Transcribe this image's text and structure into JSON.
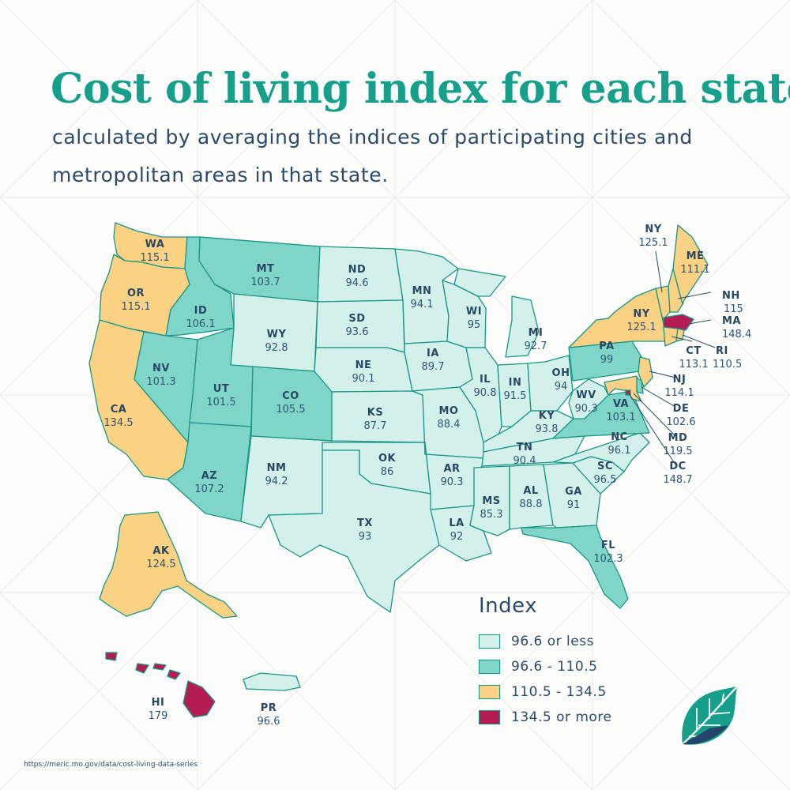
{
  "title": "Cost of living index for each state",
  "subtitle": "calculated by averaging the indices of participating cities and metropolitan areas in that state.",
  "colors": {
    "tier1": "#d3f0eb",
    "tier2": "#7fd5c8",
    "tier3": "#fbd184",
    "tier4": "#b51d52",
    "border": "#179686",
    "title": "#16a08c",
    "text": "#2b4a68"
  },
  "legend": {
    "title": "Index",
    "items": [
      {
        "label": "96.6 or less",
        "tier": "tier1"
      },
      {
        "label": "96.6 - 110.5",
        "tier": "tier2"
      },
      {
        "label": "110.5 - 134.5",
        "tier": "tier3"
      },
      {
        "label": "134.5 or more",
        "tier": "tier4"
      }
    ]
  },
  "states": {
    "WA": {
      "abbr": "WA",
      "value": "115.1",
      "tier": "tier3"
    },
    "OR": {
      "abbr": "OR",
      "value": "115.1",
      "tier": "tier3"
    },
    "CA": {
      "abbr": "CA",
      "value": "134.5",
      "tier": "tier3"
    },
    "ID": {
      "abbr": "ID",
      "value": "106.1",
      "tier": "tier2"
    },
    "NV": {
      "abbr": "NV",
      "value": "101.3",
      "tier": "tier2"
    },
    "MT": {
      "abbr": "MT",
      "value": "103.7",
      "tier": "tier2"
    },
    "WY": {
      "abbr": "WY",
      "value": "92.8",
      "tier": "tier1"
    },
    "UT": {
      "abbr": "UT",
      "value": "101.5",
      "tier": "tier2"
    },
    "AZ": {
      "abbr": "AZ",
      "value": "107.2",
      "tier": "tier2"
    },
    "CO": {
      "abbr": "CO",
      "value": "105.5",
      "tier": "tier2"
    },
    "NM": {
      "abbr": "NM",
      "value": "94.2",
      "tier": "tier1"
    },
    "ND": {
      "abbr": "ND",
      "value": "94.6",
      "tier": "tier1"
    },
    "SD": {
      "abbr": "SD",
      "value": "93.6",
      "tier": "tier1"
    },
    "NE": {
      "abbr": "NE",
      "value": "90.1",
      "tier": "tier1"
    },
    "KS": {
      "abbr": "KS",
      "value": "87.7",
      "tier": "tier1"
    },
    "OK": {
      "abbr": "OK",
      "value": "86",
      "tier": "tier1"
    },
    "TX": {
      "abbr": "TX",
      "value": "93",
      "tier": "tier1"
    },
    "MN": {
      "abbr": "MN",
      "value": "94.1",
      "tier": "tier1"
    },
    "IA": {
      "abbr": "IA",
      "value": "89.7",
      "tier": "tier1"
    },
    "MO": {
      "abbr": "MO",
      "value": "88.4",
      "tier": "tier1"
    },
    "AR": {
      "abbr": "AR",
      "value": "90.3",
      "tier": "tier1"
    },
    "LA": {
      "abbr": "LA",
      "value": "92",
      "tier": "tier1"
    },
    "WI": {
      "abbr": "WI",
      "value": "95",
      "tier": "tier1"
    },
    "IL": {
      "abbr": "IL",
      "value": "90.8",
      "tier": "tier1"
    },
    "MI": {
      "abbr": "MI",
      "value": "92.7",
      "tier": "tier1"
    },
    "IN": {
      "abbr": "IN",
      "value": "91.5",
      "tier": "tier1"
    },
    "OH": {
      "abbr": "OH",
      "value": "94",
      "tier": "tier1"
    },
    "KY": {
      "abbr": "KY",
      "value": "93.8",
      "tier": "tier1"
    },
    "TN": {
      "abbr": "TN",
      "value": "90.4",
      "tier": "tier1"
    },
    "MS": {
      "abbr": "MS",
      "value": "85.3",
      "tier": "tier1"
    },
    "AL": {
      "abbr": "AL",
      "value": "88.8",
      "tier": "tier1"
    },
    "GA": {
      "abbr": "GA",
      "value": "91",
      "tier": "tier1"
    },
    "FL": {
      "abbr": "FL",
      "value": "102.3",
      "tier": "tier2"
    },
    "SC": {
      "abbr": "SC",
      "value": "96.5",
      "tier": "tier1"
    },
    "NC": {
      "abbr": "NC",
      "value": "96.1",
      "tier": "tier1"
    },
    "VA": {
      "abbr": "VA",
      "value": "103.1",
      "tier": "tier2"
    },
    "WV": {
      "abbr": "WV",
      "value": "90.3",
      "tier": "tier1"
    },
    "PA": {
      "abbr": "PA",
      "value": "99",
      "tier": "tier2"
    },
    "NY": {
      "abbr": "NY",
      "value": "125.1",
      "tier": "tier3"
    },
    "NY_CALLOUT": {
      "abbr": "NY",
      "value": "125.1"
    },
    "ME": {
      "abbr": "ME",
      "value": "111.1",
      "tier": "tier3"
    },
    "NH": {
      "abbr": "NH",
      "value": "115",
      "tier": "tier3"
    },
    "VT": {
      "tier": "tier3"
    },
    "MA": {
      "abbr": "MA",
      "value": "148.4",
      "tier": "tier4"
    },
    "RI": {
      "abbr": "RI",
      "value": "110.5",
      "tier": "tier3"
    },
    "CT": {
      "abbr": "CT",
      "value": "113.1",
      "tier": "tier3"
    },
    "NJ": {
      "abbr": "NJ",
      "value": "114.1",
      "tier": "tier3"
    },
    "DE": {
      "abbr": "DE",
      "value": "102.6",
      "tier": "tier2"
    },
    "MD": {
      "abbr": "MD",
      "value": "119.5",
      "tier": "tier3"
    },
    "DC": {
      "abbr": "DC",
      "value": "148.7",
      "tier": "tier4"
    },
    "AK": {
      "abbr": "AK",
      "value": "124.5",
      "tier": "tier3"
    },
    "HI": {
      "abbr": "HI",
      "value": "179",
      "tier": "tier4"
    },
    "PR": {
      "abbr": "PR",
      "value": "96.6",
      "tier": "tier1"
    }
  },
  "source": "https://meric.mo.gov/data/cost-living-data-series",
  "logo_icon": "leaf-logo-icon"
}
